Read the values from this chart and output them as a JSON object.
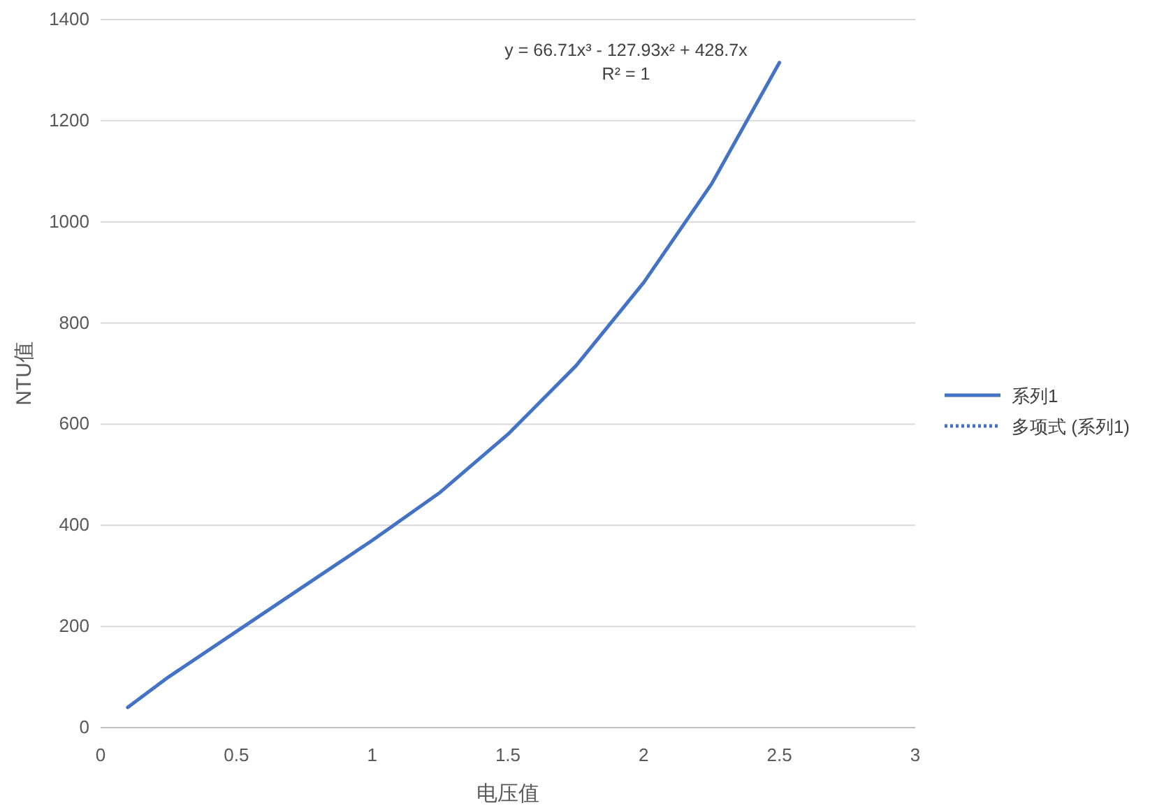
{
  "chart_data": {
    "type": "line",
    "xlabel": "电压值",
    "ylabel": "NTU值",
    "x": [
      0.1,
      0.25,
      0.5,
      0.75,
      1,
      1.25,
      1.5,
      1.75,
      2,
      2.25,
      2.5
    ],
    "series": [
      {
        "name": "系列1",
        "color": "#4472c4",
        "line_style": "solid",
        "values": [
          40,
          100,
          190,
          280,
          370,
          465,
          580,
          715,
          880,
          1075,
          1315
        ]
      },
      {
        "name": "多项式 (系列1)",
        "color": "#4472c4",
        "line_style": "dotted",
        "values": [
          null,
          null,
          null,
          null,
          null,
          null,
          null,
          null,
          null,
          null,
          null
        ]
      }
    ],
    "xlim": [
      0,
      3
    ],
    "xticks": [
      0,
      0.5,
      1,
      1.5,
      2,
      2.5,
      3
    ],
    "ylim": [
      0,
      1400
    ],
    "yticks": [
      0,
      200,
      400,
      600,
      800,
      1000,
      1200,
      1400
    ],
    "grid": "y",
    "legend": "right",
    "marker": "none",
    "annotations": [
      "y = 66.71x³ - 127.93x² + 428.7x",
      "R² = 1"
    ]
  }
}
